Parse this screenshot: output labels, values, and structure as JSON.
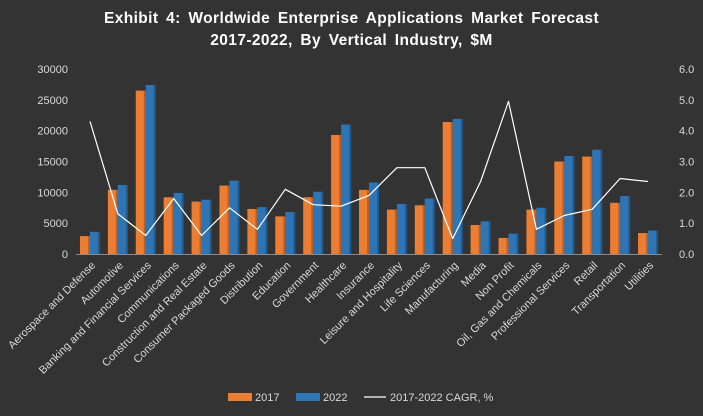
{
  "chart_data": {
    "type": "bar+line",
    "title_line1": "Exhibit 4: Worldwide Enterprise Applications Market Forecast",
    "title_line2": "2017-2022, By Vertical Industry, $M",
    "categories": [
      "Aerospace and Defense",
      "Automotive",
      "Banking and Financial Services",
      "Communications",
      "Construction and Real Estate",
      "Consumer Packaged Goods",
      "Distribution",
      "Education",
      "Government",
      "Healthcare",
      "Insurance",
      "Leisure and Hospitality",
      "Life Sciences",
      "Manufacturing",
      "Media",
      "Non Profit",
      "Oil, Gas and Chemicals",
      "Professional Services",
      "Retail",
      "Transportation",
      "Utilities"
    ],
    "series": [
      {
        "name": "2017",
        "type": "bar",
        "axis": "left",
        "color": "#ed7d31",
        "values": [
          2900,
          10400,
          26500,
          9200,
          8500,
          11100,
          7300,
          6100,
          9200,
          19300,
          10400,
          7200,
          7900,
          21400,
          4700,
          2600,
          7200,
          15000,
          15800,
          8300,
          3400
        ]
      },
      {
        "name": "2022",
        "type": "bar",
        "axis": "left",
        "color": "#2e75b6",
        "values": [
          3600,
          11200,
          27400,
          9900,
          8800,
          11900,
          7600,
          6800,
          10100,
          21000,
          11600,
          8100,
          9000,
          21900,
          5300,
          3300,
          7500,
          15900,
          16900,
          9400,
          3800
        ]
      },
      {
        "name": "2017-2022 CAGR, %",
        "type": "line",
        "axis": "right",
        "color": "#ffffff",
        "values": [
          4.3,
          1.3,
          0.6,
          1.8,
          0.6,
          1.5,
          0.8,
          2.1,
          1.6,
          1.55,
          1.9,
          2.8,
          2.8,
          0.5,
          2.35,
          4.95,
          0.8,
          1.25,
          1.45,
          2.45,
          2.35
        ]
      }
    ],
    "y_left": {
      "min": 0,
      "max": 30000,
      "step": 5000,
      "ticks": [
        "0",
        "5000",
        "10000",
        "15000",
        "20000",
        "25000",
        "30000"
      ]
    },
    "y_right": {
      "min": 0,
      "max": 6,
      "step": 1,
      "ticks": [
        "0.0",
        "1.0",
        "2.0",
        "3.0",
        "4.0",
        "5.0",
        "6.0"
      ]
    },
    "gridlines": false,
    "legend_position": "bottom-center"
  }
}
